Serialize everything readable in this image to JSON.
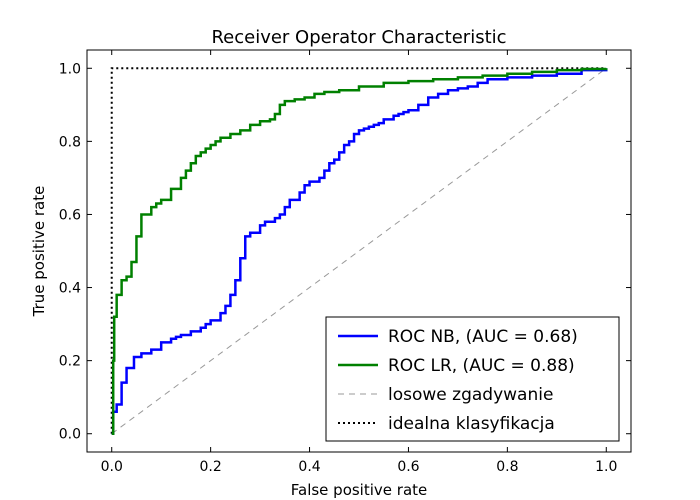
{
  "chart_data": {
    "type": "line",
    "title": "Receiver Operator Characteristic",
    "xlabel": "False positive rate",
    "ylabel": "True positive rate",
    "xlim": [
      -0.05,
      1.05
    ],
    "ylim": [
      -0.05,
      1.05
    ],
    "xticks": [
      "0.0",
      "0.2",
      "0.4",
      "0.6",
      "0.8",
      "1.0"
    ],
    "yticks": [
      "0.0",
      "0.2",
      "0.4",
      "0.6",
      "0.8",
      "1.0"
    ],
    "grid": false,
    "legend_position": "lower-right",
    "series": [
      {
        "name": "ROC NB, (AUC = 0.68)",
        "color": "#0000ff",
        "style": "solid-step",
        "x": [
          0.0,
          0.003,
          0.01,
          0.02,
          0.03,
          0.045,
          0.06,
          0.08,
          0.1,
          0.12,
          0.13,
          0.14,
          0.16,
          0.18,
          0.19,
          0.2,
          0.22,
          0.23,
          0.24,
          0.25,
          0.26,
          0.27,
          0.28,
          0.3,
          0.31,
          0.33,
          0.34,
          0.35,
          0.36,
          0.38,
          0.39,
          0.4,
          0.42,
          0.43,
          0.44,
          0.45,
          0.46,
          0.47,
          0.48,
          0.49,
          0.5,
          0.51,
          0.52,
          0.53,
          0.54,
          0.55,
          0.57,
          0.58,
          0.59,
          0.6,
          0.62,
          0.64,
          0.66,
          0.68,
          0.7,
          0.72,
          0.74,
          0.76,
          0.8,
          0.85,
          0.9,
          0.95,
          1.0
        ],
        "y": [
          0.0,
          0.06,
          0.08,
          0.14,
          0.18,
          0.21,
          0.22,
          0.23,
          0.25,
          0.26,
          0.265,
          0.27,
          0.28,
          0.29,
          0.3,
          0.31,
          0.33,
          0.35,
          0.38,
          0.42,
          0.48,
          0.54,
          0.55,
          0.57,
          0.58,
          0.59,
          0.6,
          0.62,
          0.64,
          0.66,
          0.68,
          0.69,
          0.7,
          0.72,
          0.74,
          0.75,
          0.77,
          0.79,
          0.8,
          0.82,
          0.83,
          0.835,
          0.84,
          0.845,
          0.85,
          0.86,
          0.87,
          0.875,
          0.88,
          0.885,
          0.9,
          0.92,
          0.93,
          0.94,
          0.945,
          0.95,
          0.96,
          0.97,
          0.975,
          0.98,
          0.985,
          0.995,
          1.0
        ]
      },
      {
        "name": "ROC LR, (AUC = 0.88)",
        "color": "#008000",
        "style": "solid-step",
        "x": [
          0.0,
          0.003,
          0.005,
          0.01,
          0.02,
          0.03,
          0.04,
          0.05,
          0.06,
          0.08,
          0.09,
          0.1,
          0.12,
          0.14,
          0.15,
          0.16,
          0.17,
          0.18,
          0.19,
          0.2,
          0.21,
          0.22,
          0.24,
          0.26,
          0.28,
          0.3,
          0.32,
          0.33,
          0.34,
          0.35,
          0.37,
          0.39,
          0.41,
          0.43,
          0.46,
          0.5,
          0.55,
          0.6,
          0.65,
          0.7,
          0.75,
          0.8,
          0.85,
          0.9,
          0.95,
          1.0
        ],
        "y": [
          0.0,
          0.2,
          0.32,
          0.38,
          0.42,
          0.43,
          0.47,
          0.54,
          0.6,
          0.62,
          0.63,
          0.64,
          0.67,
          0.7,
          0.72,
          0.74,
          0.76,
          0.77,
          0.78,
          0.79,
          0.8,
          0.81,
          0.82,
          0.83,
          0.845,
          0.855,
          0.86,
          0.875,
          0.9,
          0.91,
          0.915,
          0.92,
          0.93,
          0.935,
          0.94,
          0.95,
          0.96,
          0.965,
          0.97,
          0.975,
          0.98,
          0.985,
          0.99,
          0.995,
          0.998,
          1.0
        ]
      },
      {
        "name": "losowe zgadywanie",
        "color": "#999999",
        "style": "dashed",
        "x": [
          0.0,
          1.0
        ],
        "y": [
          0.0,
          1.0
        ]
      },
      {
        "name": "idealna klasyfikacja",
        "color": "#000000",
        "style": "dotted",
        "x": [
          0.0,
          0.0,
          1.0
        ],
        "y": [
          0.0,
          1.0,
          1.0
        ]
      }
    ]
  }
}
